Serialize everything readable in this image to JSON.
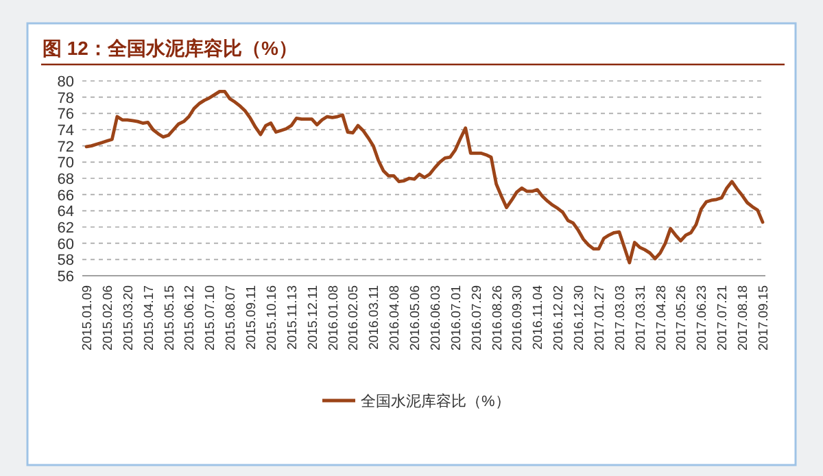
{
  "chart_data": {
    "type": "line",
    "title": "图 12：全国水泥库容比（%）",
    "categories": [
      "2015.01.09",
      null,
      null,
      null,
      "2015.02.06",
      null,
      null,
      null,
      "2015.03.20",
      null,
      null,
      null,
      "2015.04.17",
      null,
      null,
      null,
      "2015.05.15",
      null,
      null,
      null,
      "2015.06.12",
      null,
      null,
      null,
      "2015.07.10",
      null,
      null,
      null,
      "2015.08.07",
      null,
      null,
      null,
      "2015.09.11",
      null,
      null,
      null,
      "2015.10.16",
      null,
      null,
      null,
      "2015.11.13",
      null,
      null,
      null,
      "2015.12.11",
      null,
      null,
      null,
      "2016.01.08",
      null,
      null,
      null,
      "2016.02.05",
      null,
      null,
      null,
      "2016.03.11",
      null,
      null,
      null,
      "2016.04.08",
      null,
      null,
      null,
      "2016.05.06",
      null,
      null,
      null,
      "2016.06.03",
      null,
      null,
      null,
      "2016.07.01",
      null,
      null,
      null,
      "2016.07.29",
      null,
      null,
      null,
      "2016.08.26",
      null,
      null,
      null,
      "2016.09.30",
      null,
      null,
      null,
      "2016.11.04",
      null,
      null,
      null,
      "2016.12.02",
      null,
      null,
      null,
      "2016.12.30",
      null,
      null,
      null,
      "2017.01.27",
      null,
      null,
      null,
      "2017.03.03",
      null,
      null,
      null,
      "2017.03.31",
      null,
      null,
      null,
      "2017.04.28",
      null,
      null,
      null,
      "2017.05.26",
      null,
      null,
      null,
      "2017.06.23",
      null,
      null,
      null,
      "2017.07.21",
      null,
      null,
      null,
      "2017.08.18",
      null,
      null,
      null,
      "2017.09.15"
    ],
    "series": [
      {
        "name": "全国水泥库容比（%）",
        "color": "#9c4418",
        "values": [
          71.9,
          72.0,
          72.2,
          72.4,
          72.6,
          72.8,
          75.6,
          75.2,
          75.2,
          75.1,
          75.0,
          74.8,
          74.9,
          74.0,
          73.5,
          73.1,
          73.3,
          74.0,
          74.7,
          75.0,
          75.6,
          76.6,
          77.2,
          77.6,
          77.9,
          78.3,
          78.7,
          78.7,
          77.8,
          77.4,
          76.9,
          76.3,
          75.4,
          74.3,
          73.4,
          74.5,
          74.8,
          73.7,
          73.9,
          74.1,
          74.5,
          75.4,
          75.3,
          75.3,
          75.3,
          74.6,
          75.2,
          75.6,
          75.5,
          75.6,
          75.8,
          73.7,
          73.6,
          74.5,
          73.9,
          73.0,
          72.0,
          70.2,
          68.9,
          68.3,
          68.3,
          67.6,
          67.7,
          68.0,
          67.9,
          68.5,
          68.1,
          68.5,
          69.3,
          70.0,
          70.5,
          70.6,
          71.5,
          72.9,
          74.2,
          71.1,
          71.1,
          71.1,
          70.9,
          70.6,
          67.3,
          65.8,
          64.4,
          65.3,
          66.3,
          66.8,
          66.4,
          66.4,
          66.6,
          65.8,
          65.2,
          64.7,
          64.3,
          63.8,
          62.8,
          62.5,
          61.6,
          60.5,
          59.8,
          59.3,
          59.3,
          60.6,
          61.0,
          61.3,
          61.4,
          59.5,
          57.6,
          60.1,
          59.5,
          59.2,
          58.8,
          58.1,
          58.8,
          60.0,
          61.8,
          61.0,
          60.3,
          61.0,
          61.3,
          62.3,
          64.2,
          65.1,
          65.3,
          65.4,
          65.6,
          66.8,
          67.6,
          66.7,
          65.9,
          65.0,
          64.5,
          64.1,
          62.6
        ]
      }
    ],
    "ylim": [
      56,
      80
    ],
    "yticks": [
      56,
      58,
      60,
      62,
      64,
      66,
      68,
      70,
      72,
      74,
      76,
      78,
      80
    ],
    "grid": "y",
    "legend": "bottom",
    "line_style": "solid"
  }
}
